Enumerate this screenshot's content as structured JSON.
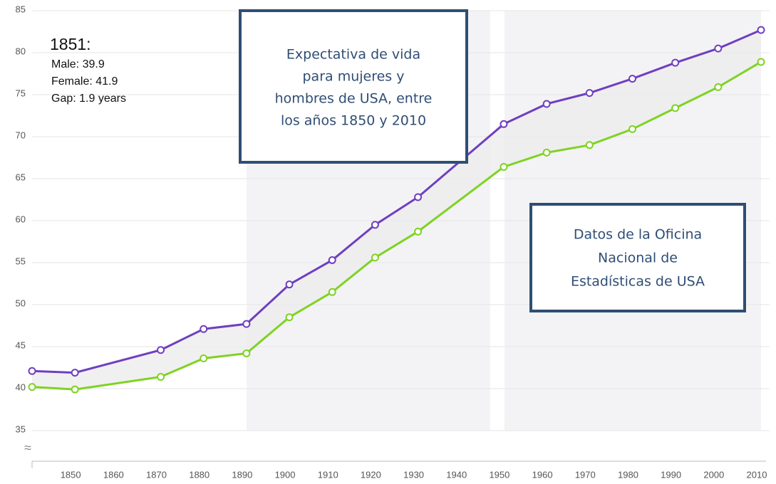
{
  "chart_data": {
    "type": "line",
    "tooltip": {
      "title": "1851:",
      "lines": [
        "Male: 39.9",
        "Female: 41.9",
        "Gap: 1.9 years"
      ]
    },
    "annotations": [
      {
        "lines": [
          "Expectativa de vida",
          "para mujeres y",
          "hombres de USA, entre",
          "los años 1850 y 2010"
        ]
      },
      {
        "lines": [
          "Datos de la Oficina",
          "Nacional de",
          "Estadísticas de USA"
        ]
      }
    ],
    "x": [
      1841,
      1851,
      1871,
      1881,
      1891,
      1901,
      1911,
      1921,
      1931,
      1951,
      1961,
      1971,
      1981,
      1991,
      2001,
      2011
    ],
    "series": [
      {
        "color": "#6f3fc0",
        "values": [
          42.1,
          41.9,
          44.6,
          47.1,
          47.7,
          52.4,
          55.3,
          59.5,
          62.8,
          71.5,
          73.9,
          75.2,
          76.9,
          78.8,
          80.5,
          82.7
        ]
      },
      {
        "color": "#7ed321",
        "values": [
          40.2,
          39.9,
          41.4,
          43.6,
          44.2,
          48.5,
          51.5,
          55.6,
          58.7,
          66.4,
          68.1,
          69.0,
          70.9,
          73.4,
          75.9,
          78.9
        ]
      }
    ],
    "xlim": [
      1841,
      2011
    ],
    "xticks": [
      1850,
      1860,
      1870,
      1880,
      1890,
      1900,
      1910,
      1920,
      1930,
      1940,
      1950,
      1960,
      1970,
      1980,
      1990,
      2000,
      2010
    ],
    "ylim": [
      35,
      85
    ],
    "yticks": [
      35,
      40,
      45,
      50,
      55,
      60,
      65,
      70,
      75,
      80,
      85
    ],
    "grid": true
  }
}
